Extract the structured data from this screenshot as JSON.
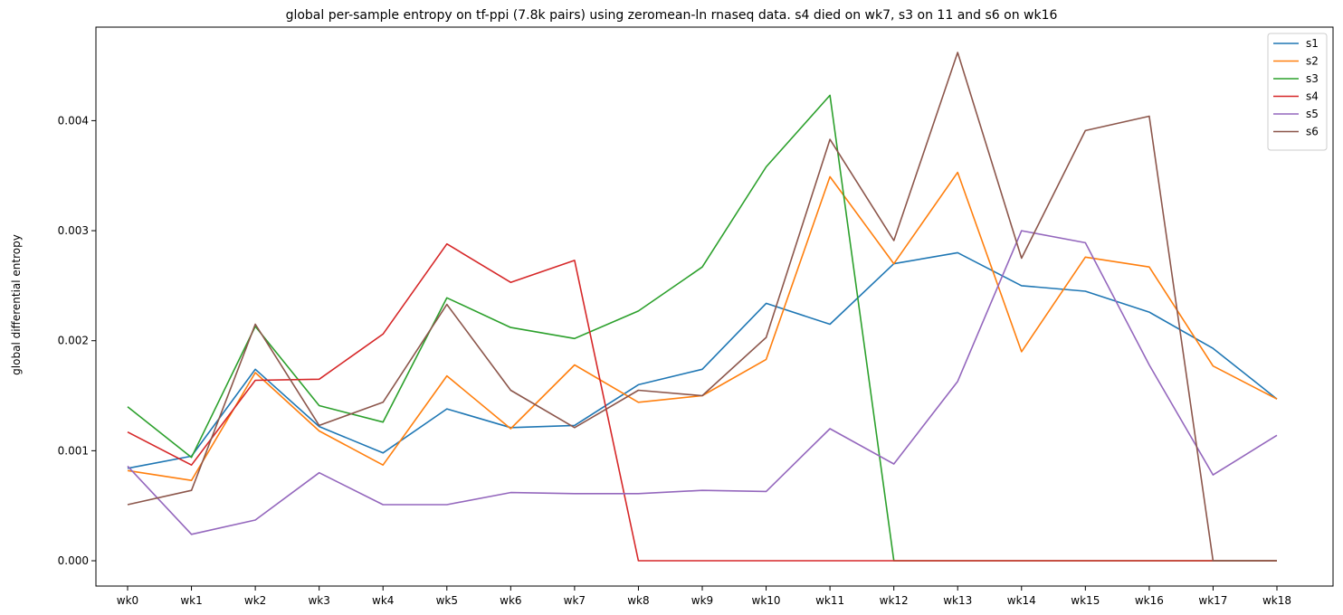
{
  "chart_data": {
    "type": "line",
    "title": "global per-sample entropy on tf-ppi (7.8k pairs) using zeromean-ln rnaseq data. s4 died on wk7, s3 on 11 and s6 on wk16",
    "xlabel": "",
    "ylabel": "global differential entropy",
    "x": [
      "wk0",
      "wk1",
      "wk2",
      "wk3",
      "wk4",
      "wk5",
      "wk6",
      "wk7",
      "wk8",
      "wk9",
      "wk10",
      "wk11",
      "wk12",
      "wk13",
      "wk14",
      "wk15",
      "wk16",
      "wk17",
      "wk18"
    ],
    "ylim": [
      -0.00023,
      0.00485
    ],
    "yticks": [
      0.0,
      0.001,
      0.002,
      0.003,
      0.004
    ],
    "ytick_labels": [
      "0.000",
      "0.001",
      "0.002",
      "0.003",
      "0.004"
    ],
    "grid": false,
    "legend_position": "top-right",
    "series": [
      {
        "name": "s1",
        "color": "#1f77b4",
        "values": [
          0.00084,
          0.00095,
          0.00174,
          0.00122,
          0.00098,
          0.00138,
          0.00121,
          0.00123,
          0.0016,
          0.00174,
          0.00234,
          0.00215,
          0.0027,
          0.0028,
          0.0025,
          0.00245,
          0.00226,
          0.00193,
          0.00147
        ]
      },
      {
        "name": "s2",
        "color": "#ff7f0e",
        "values": [
          0.00082,
          0.00073,
          0.00171,
          0.00118,
          0.00087,
          0.00168,
          0.0012,
          0.00178,
          0.00144,
          0.0015,
          0.00183,
          0.00349,
          0.0027,
          0.00353,
          0.0019,
          0.00276,
          0.00267,
          0.00177,
          0.00147
        ]
      },
      {
        "name": "s3",
        "color": "#2ca02c",
        "values": [
          0.0014,
          0.00094,
          0.00213,
          0.00141,
          0.00126,
          0.00239,
          0.00212,
          0.00202,
          0.00227,
          0.00267,
          0.00358,
          0.00423,
          0.0,
          0.0,
          0.0,
          0.0,
          0.0,
          0.0,
          0.0
        ]
      },
      {
        "name": "s4",
        "color": "#d62728",
        "values": [
          0.00117,
          0.00087,
          0.00164,
          0.00165,
          0.00206,
          0.00288,
          0.00253,
          0.00273,
          0.0,
          0.0,
          0.0,
          0.0,
          0.0,
          0.0,
          0.0,
          0.0,
          0.0,
          0.0,
          0.0
        ]
      },
      {
        "name": "s5",
        "color": "#9467bd",
        "values": [
          0.00086,
          0.00024,
          0.00037,
          0.0008,
          0.00051,
          0.00051,
          0.00062,
          0.00061,
          0.00061,
          0.00064,
          0.00063,
          0.0012,
          0.00088,
          0.00163,
          0.003,
          0.00289,
          0.00178,
          0.00078,
          0.00114
        ]
      },
      {
        "name": "s6",
        "color": "#8c564b",
        "values": [
          0.00051,
          0.00064,
          0.00215,
          0.00123,
          0.00144,
          0.00233,
          0.00155,
          0.00121,
          0.00155,
          0.0015,
          0.00203,
          0.00383,
          0.00291,
          0.00462,
          0.00275,
          0.00391,
          0.00404,
          0.0,
          0.0
        ]
      }
    ]
  }
}
